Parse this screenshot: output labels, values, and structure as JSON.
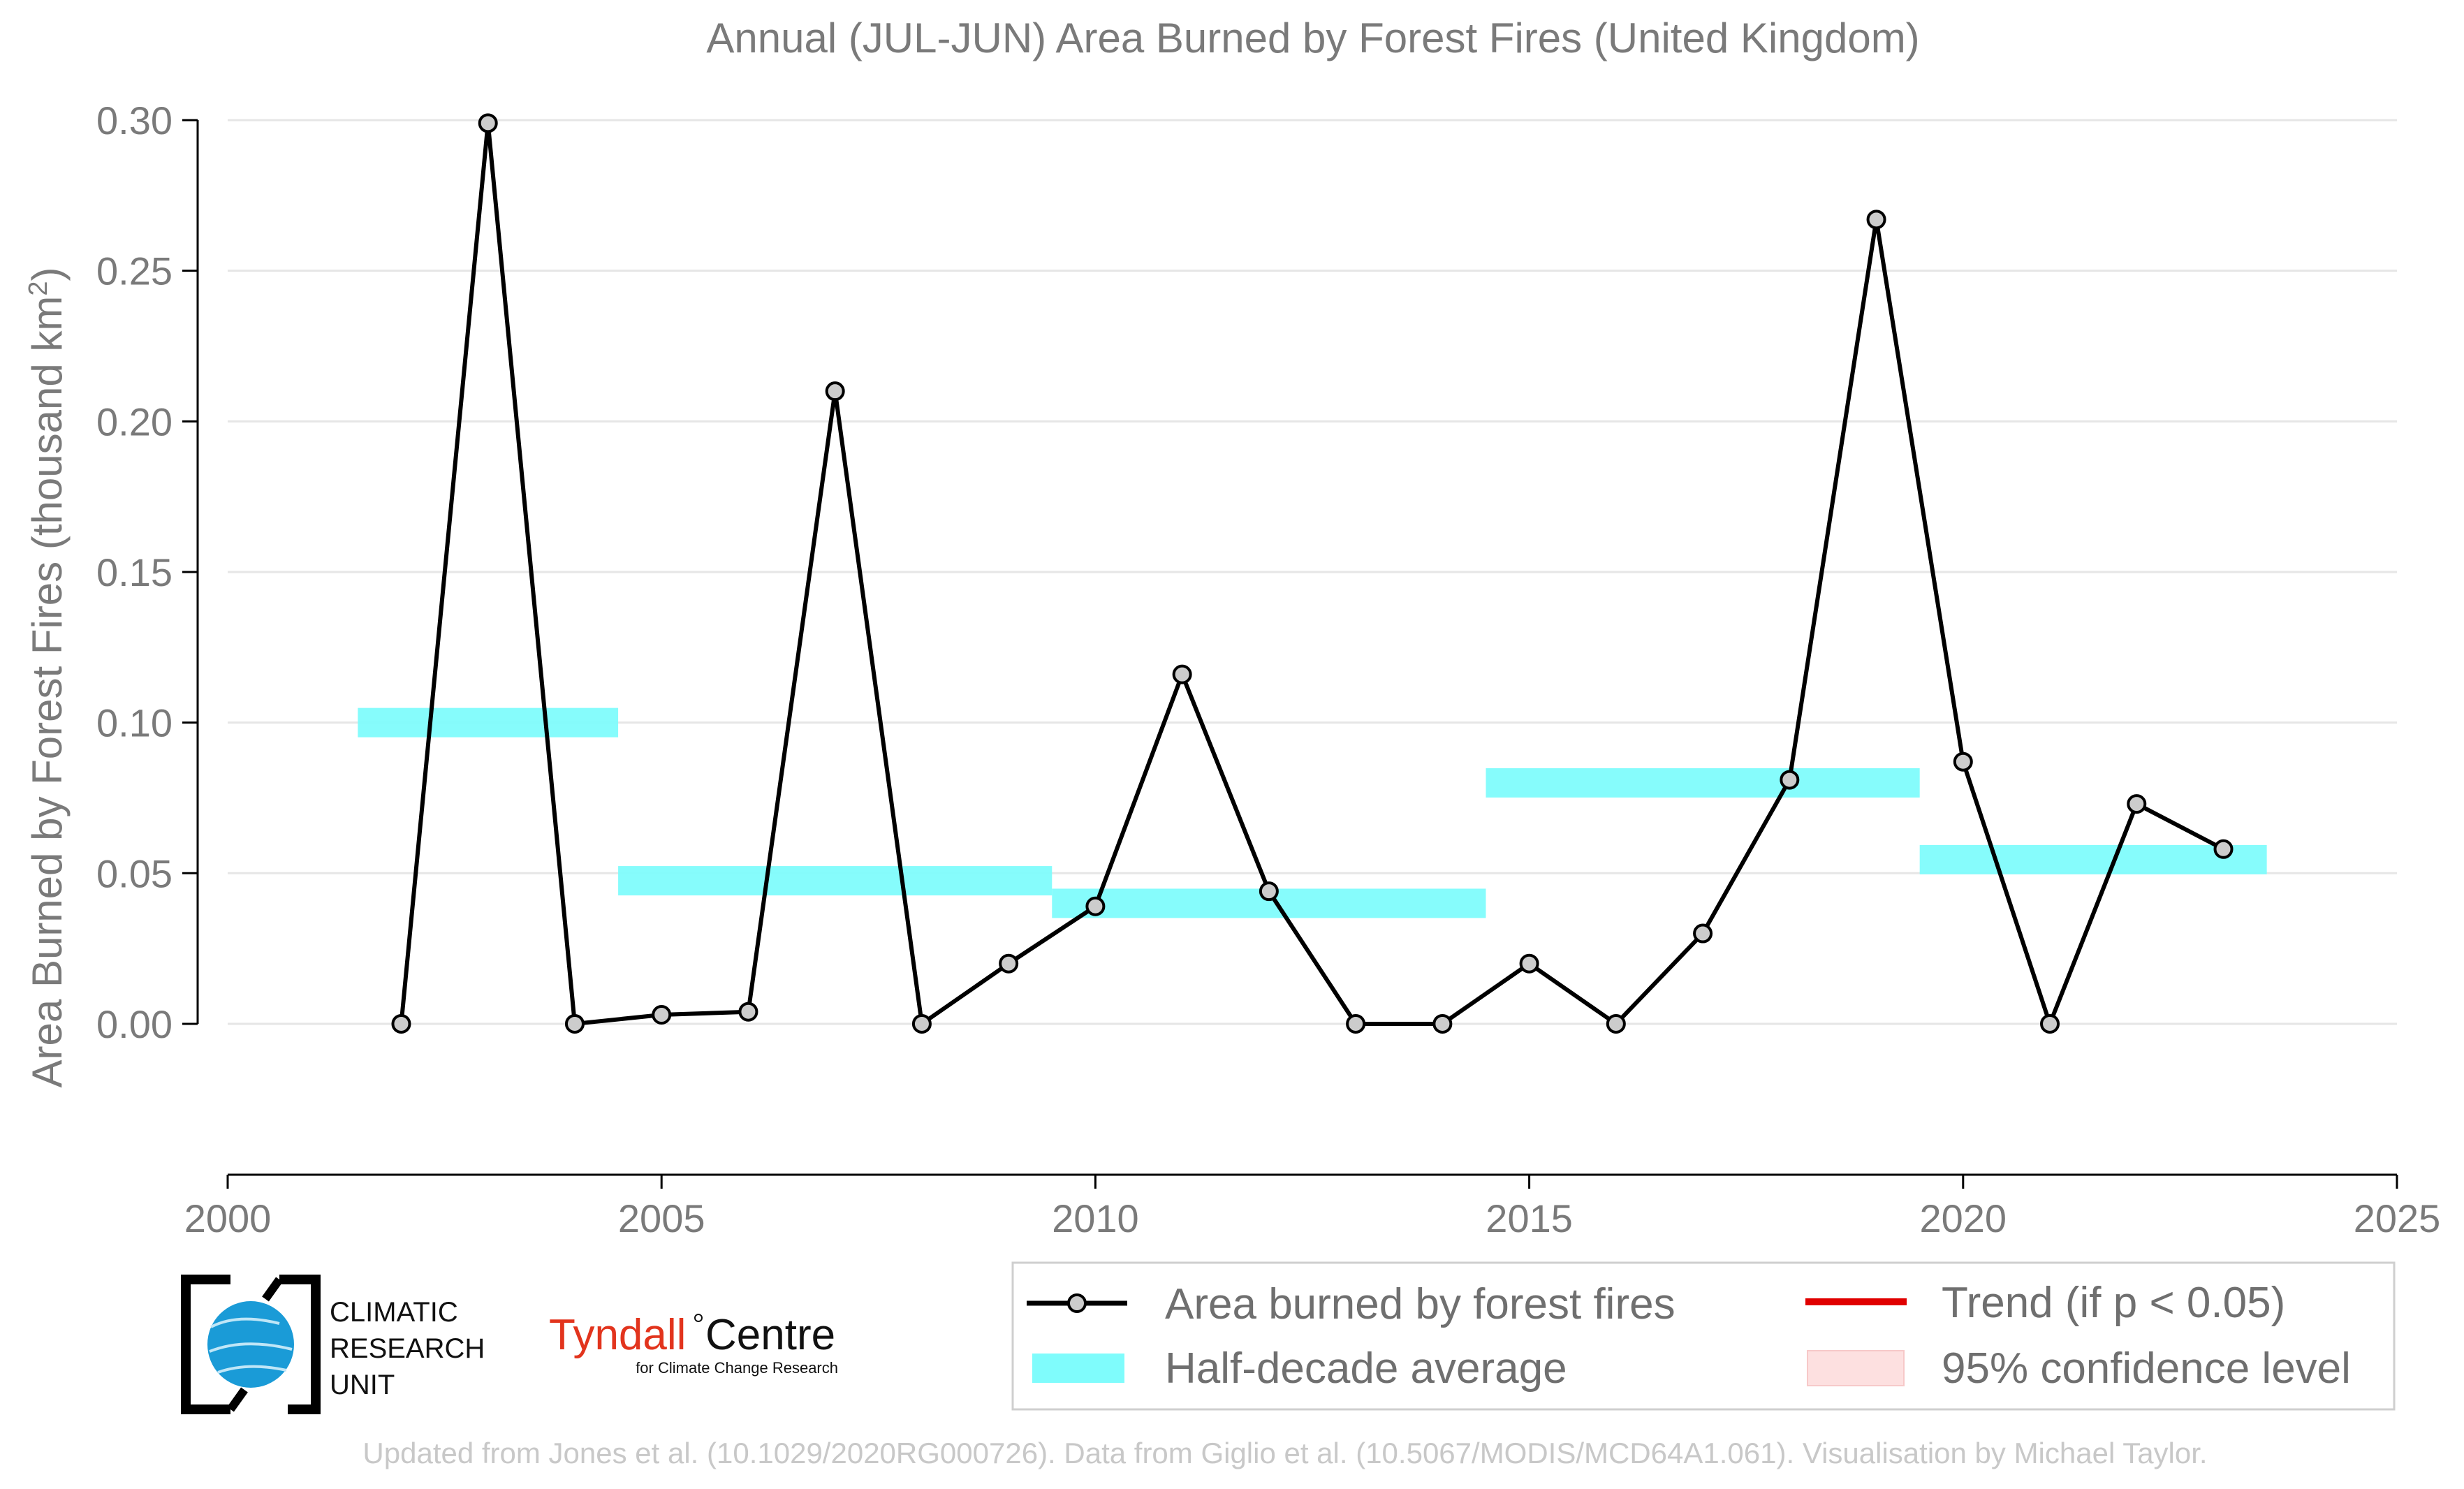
{
  "chart_data": {
    "type": "line",
    "title": "Annual (JUL-JUN) Area Burned by Forest Fires (United Kingdom)",
    "ylabel_main": "Area Burned by Forest Fires (thousand km",
    "ylabel_sup": "2",
    "ylabel_close": ")",
    "xlabel": "",
    "xlim": [
      2000,
      2025
    ],
    "ylim": [
      -0.0225,
      0.3
    ],
    "grid": true,
    "x_ticks": [
      2000,
      2005,
      2010,
      2015,
      2020,
      2025
    ],
    "x_tick_labels": [
      "2000",
      "2005",
      "2010",
      "2015",
      "2020",
      "2025"
    ],
    "y_ticks": [
      0.0,
      0.05,
      0.1,
      0.15,
      0.2,
      0.25,
      0.3
    ],
    "y_tick_labels": [
      "0.00",
      "0.05",
      "0.10",
      "0.15",
      "0.20",
      "0.25",
      "0.30"
    ],
    "series": [
      {
        "name": "Area burned by forest fires",
        "color": "#000000",
        "marker_fill": "#cccccc",
        "x": [
          2002,
          2003,
          2004,
          2005,
          2006,
          2007,
          2008,
          2009,
          2010,
          2011,
          2012,
          2013,
          2014,
          2015,
          2016,
          2017,
          2018,
          2019,
          2020,
          2021,
          2022,
          2023
        ],
        "y": [
          0.0,
          0.299,
          0.0,
          0.003,
          0.004,
          0.21,
          0.0,
          0.02,
          0.039,
          0.116,
          0.044,
          0.0,
          0.0,
          0.02,
          0.0,
          0.03,
          0.081,
          0.267,
          0.087,
          0.0,
          0.073,
          0.058
        ]
      }
    ],
    "half_decade_average": {
      "name": "Half-decade average",
      "color": "#7ffcfc",
      "segments": [
        {
          "x0": 2001.5,
          "x1": 2004.5,
          "y": 0.1
        },
        {
          "x0": 2004.5,
          "x1": 2009.5,
          "y": 0.0475
        },
        {
          "x0": 2009.5,
          "x1": 2014.5,
          "y": 0.04
        },
        {
          "x0": 2014.5,
          "x1": 2019.5,
          "y": 0.08
        },
        {
          "x0": 2019.5,
          "x1": 2023.5,
          "y": 0.0545
        }
      ]
    },
    "legend": {
      "placement": "bottom-right",
      "entries": [
        {
          "label": "Area burned by forest fires",
          "kind": "line-marker",
          "color": "#000000"
        },
        {
          "label": "Trend (if p < 0.05)",
          "kind": "line",
          "color": "#e00000"
        },
        {
          "label": "Half-decade average",
          "kind": "band",
          "color": "#7ffcfc"
        },
        {
          "label": "95% confidence level",
          "kind": "band",
          "color": "#fde0e0"
        }
      ]
    }
  },
  "logos": {
    "cru_lines": [
      "CLIMATIC",
      "RESEARCH",
      "UNIT"
    ],
    "tyndall_main": "Tyndall",
    "tyndall_centre": "Centre",
    "tyndall_sub": "for Climate Change Research"
  },
  "credit": "Updated from Jones et al. (10.1029/2020RG000726). Data from Giglio et al. (10.5067/MODIS/MCD64A1.061). Visualisation by Michael Taylor."
}
